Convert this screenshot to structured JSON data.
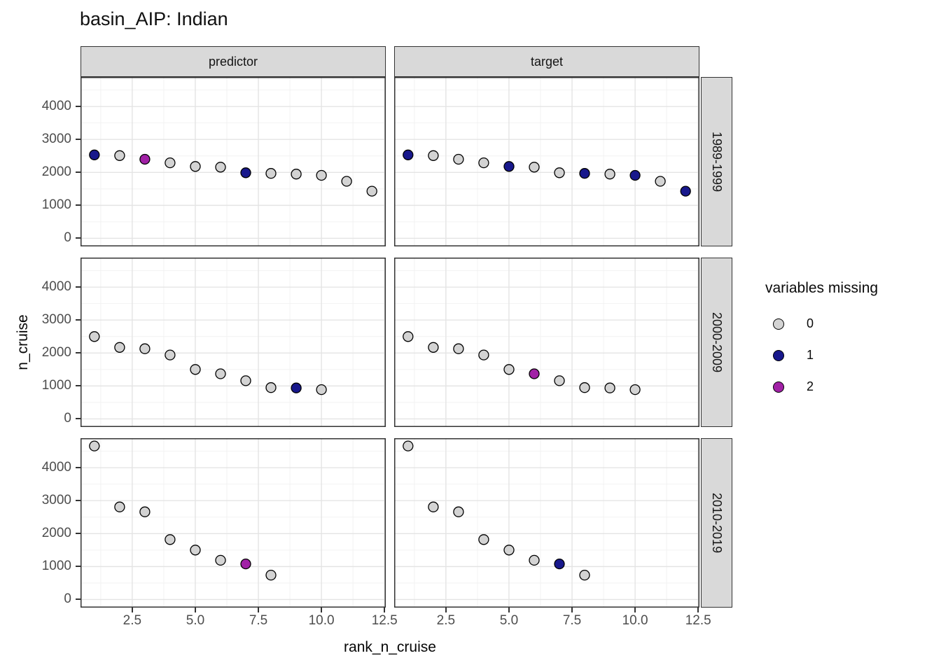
{
  "page": {
    "background": "#FFFFFF"
  },
  "chart_data": {
    "type": "scatter",
    "title": "basin_AIP: Indian",
    "xlabel": "rank_n_cruise",
    "ylabel": "n_cruise",
    "facet_cols": [
      "predictor",
      "target"
    ],
    "facet_rows": [
      "1989-1999",
      "2000-2009",
      "2010-2019"
    ],
    "xlim": [
      0.45,
      12.55
    ],
    "ylim": [
      -245,
      4895
    ],
    "grid": "on",
    "x_ticks": {
      "values": [
        2.5,
        5,
        7.5,
        10,
        12.5
      ],
      "labels": [
        "2.5",
        "5.0",
        "7.5",
        "10.0",
        "12.5"
      ],
      "minor": [
        1.25,
        3.75,
        6.25,
        8.75,
        11.25
      ]
    },
    "y_ticks": {
      "values": [
        0,
        1000,
        2000,
        3000,
        4000
      ],
      "labels": [
        "0",
        "1000",
        "2000",
        "3000",
        "4000"
      ],
      "minor": [
        500,
        1500,
        2500,
        3500,
        4500
      ]
    },
    "legend": {
      "title": "variables missing",
      "position": "right",
      "entries": [
        {
          "label": "0",
          "color": "#D3D3D3"
        },
        {
          "label": "1",
          "color": "#18188C"
        },
        {
          "label": "2",
          "color": "#A121A6"
        }
      ]
    },
    "point_style": {
      "radius": 7,
      "stroke": "#000000"
    },
    "colors": {
      "strip_bg": "#D9D9D9",
      "strip_border": "#333333",
      "panel_border": "#333333",
      "grid_major": "#E4E4E4",
      "grid_minor": "#F2F2F2",
      "tick_text": "#4D4D4D",
      "tick_mark": "#333333"
    },
    "panels": [
      {
        "facet_col": "predictor",
        "facet_row": "1989-1999",
        "points": [
          {
            "x": 1,
            "y": 2530,
            "missing": 1
          },
          {
            "x": 2,
            "y": 2510,
            "missing": 0
          },
          {
            "x": 3,
            "y": 2400,
            "missing": 2
          },
          {
            "x": 4,
            "y": 2290,
            "missing": 0
          },
          {
            "x": 5,
            "y": 2180,
            "missing": 0
          },
          {
            "x": 6,
            "y": 2160,
            "missing": 0
          },
          {
            "x": 7,
            "y": 1990,
            "missing": 1
          },
          {
            "x": 8,
            "y": 1970,
            "missing": 0
          },
          {
            "x": 9,
            "y": 1950,
            "missing": 0
          },
          {
            "x": 10,
            "y": 1910,
            "missing": 0
          },
          {
            "x": 11,
            "y": 1730,
            "missing": 0
          },
          {
            "x": 12,
            "y": 1430,
            "missing": 0
          }
        ]
      },
      {
        "facet_col": "target",
        "facet_row": "1989-1999",
        "points": [
          {
            "x": 1,
            "y": 2530,
            "missing": 1
          },
          {
            "x": 2,
            "y": 2510,
            "missing": 0
          },
          {
            "x": 3,
            "y": 2400,
            "missing": 0
          },
          {
            "x": 4,
            "y": 2290,
            "missing": 0
          },
          {
            "x": 5,
            "y": 2180,
            "missing": 1
          },
          {
            "x": 6,
            "y": 2160,
            "missing": 0
          },
          {
            "x": 7,
            "y": 1990,
            "missing": 0
          },
          {
            "x": 8,
            "y": 1970,
            "missing": 1
          },
          {
            "x": 9,
            "y": 1950,
            "missing": 0
          },
          {
            "x": 10,
            "y": 1910,
            "missing": 1
          },
          {
            "x": 11,
            "y": 1730,
            "missing": 0
          },
          {
            "x": 12,
            "y": 1430,
            "missing": 1
          }
        ]
      },
      {
        "facet_col": "predictor",
        "facet_row": "2000-2009",
        "points": [
          {
            "x": 1,
            "y": 2500,
            "missing": 0
          },
          {
            "x": 2,
            "y": 2170,
            "missing": 0
          },
          {
            "x": 3,
            "y": 2130,
            "missing": 0
          },
          {
            "x": 4,
            "y": 1940,
            "missing": 0
          },
          {
            "x": 5,
            "y": 1500,
            "missing": 0
          },
          {
            "x": 6,
            "y": 1370,
            "missing": 0
          },
          {
            "x": 7,
            "y": 1160,
            "missing": 0
          },
          {
            "x": 8,
            "y": 950,
            "missing": 0
          },
          {
            "x": 9,
            "y": 940,
            "missing": 1
          },
          {
            "x": 10,
            "y": 890,
            "missing": 0
          }
        ]
      },
      {
        "facet_col": "target",
        "facet_row": "2000-2009",
        "points": [
          {
            "x": 1,
            "y": 2500,
            "missing": 0
          },
          {
            "x": 2,
            "y": 2170,
            "missing": 0
          },
          {
            "x": 3,
            "y": 2130,
            "missing": 0
          },
          {
            "x": 4,
            "y": 1940,
            "missing": 0
          },
          {
            "x": 5,
            "y": 1500,
            "missing": 0
          },
          {
            "x": 6,
            "y": 1370,
            "missing": 2
          },
          {
            "x": 7,
            "y": 1160,
            "missing": 0
          },
          {
            "x": 8,
            "y": 950,
            "missing": 0
          },
          {
            "x": 9,
            "y": 940,
            "missing": 0
          },
          {
            "x": 10,
            "y": 890,
            "missing": 0
          }
        ]
      },
      {
        "facet_col": "predictor",
        "facet_row": "2010-2019",
        "points": [
          {
            "x": 1,
            "y": 4660,
            "missing": 0
          },
          {
            "x": 2,
            "y": 2810,
            "missing": 0
          },
          {
            "x": 3,
            "y": 2660,
            "missing": 0
          },
          {
            "x": 4,
            "y": 1820,
            "missing": 0
          },
          {
            "x": 5,
            "y": 1500,
            "missing": 0
          },
          {
            "x": 6,
            "y": 1190,
            "missing": 0
          },
          {
            "x": 7,
            "y": 1080,
            "missing": 2
          },
          {
            "x": 8,
            "y": 740,
            "missing": 0
          }
        ]
      },
      {
        "facet_col": "target",
        "facet_row": "2010-2019",
        "points": [
          {
            "x": 1,
            "y": 4660,
            "missing": 0
          },
          {
            "x": 2,
            "y": 2810,
            "missing": 0
          },
          {
            "x": 3,
            "y": 2660,
            "missing": 0
          },
          {
            "x": 4,
            "y": 1820,
            "missing": 0
          },
          {
            "x": 5,
            "y": 1500,
            "missing": 0
          },
          {
            "x": 6,
            "y": 1190,
            "missing": 0
          },
          {
            "x": 7,
            "y": 1080,
            "missing": 1
          },
          {
            "x": 8,
            "y": 740,
            "missing": 0
          }
        ]
      }
    ]
  }
}
